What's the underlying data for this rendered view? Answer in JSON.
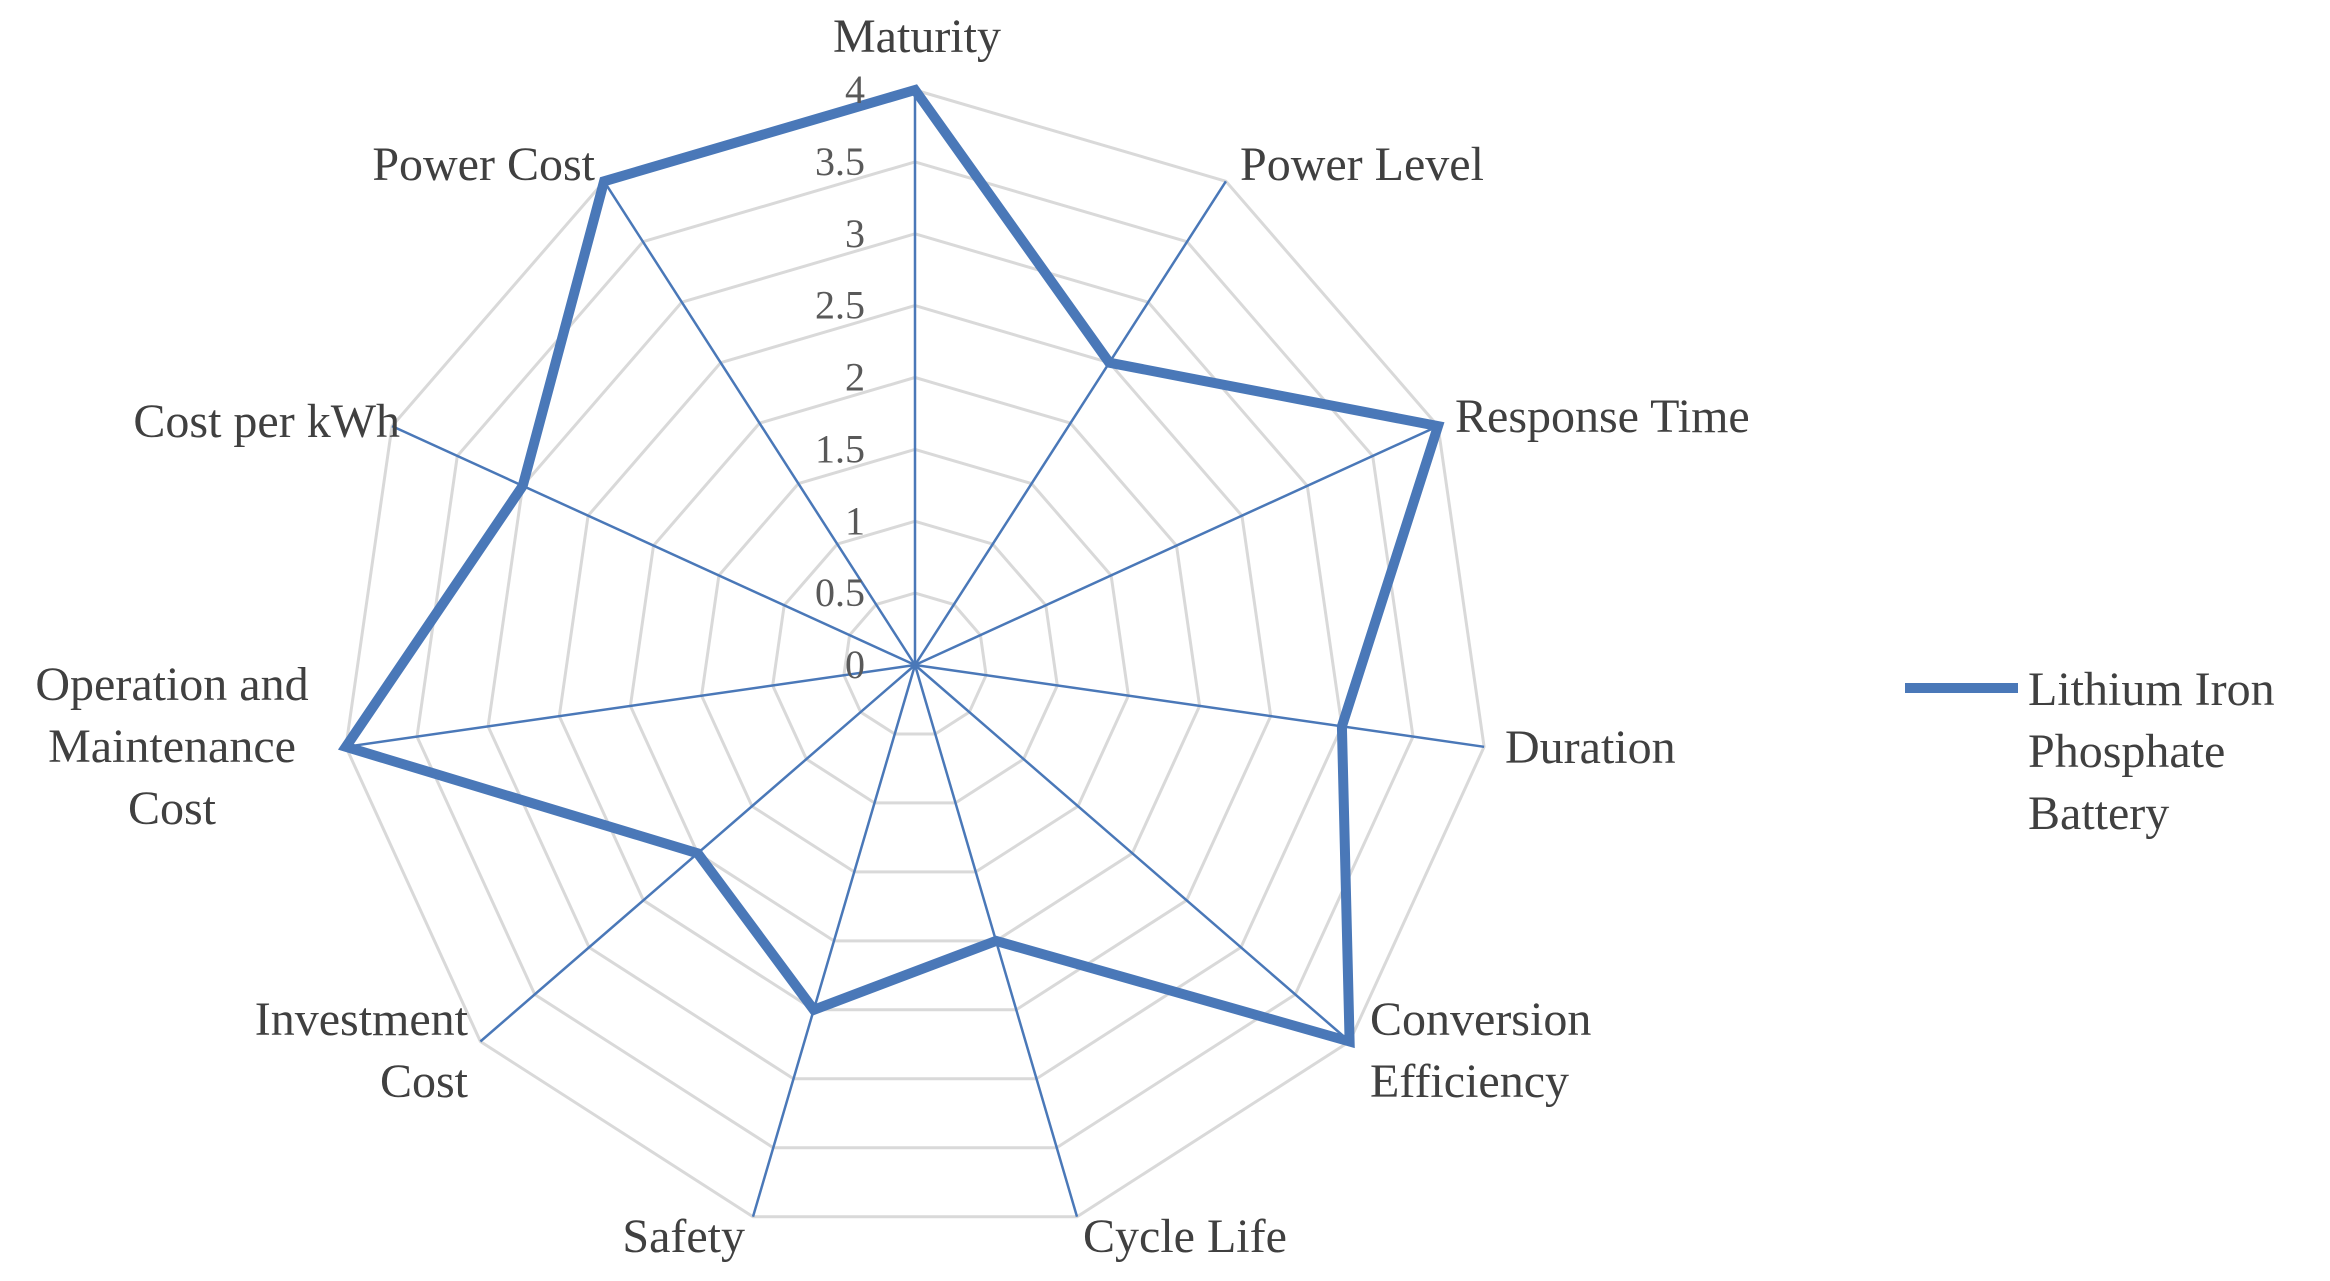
{
  "chart_data": {
    "type": "radar",
    "categories": [
      "Maturity",
      "Power Level",
      "Response Time",
      "Duration",
      "Conversion Efficiency",
      "Cycle Life",
      "Safety",
      "Investment Cost",
      "Operation and Maintenance Cost",
      "Cost per kWh",
      "Power Cost"
    ],
    "category_label_lines": [
      [
        "Maturity"
      ],
      [
        "Power Level"
      ],
      [
        "Response Time"
      ],
      [
        "Duration"
      ],
      [
        "Conversion",
        "Efficiency"
      ],
      [
        "Cycle Life"
      ],
      [
        "Safety"
      ],
      [
        "Investment",
        "Cost"
      ],
      [
        "Operation and",
        "Maintenance",
        "Cost"
      ],
      [
        "Cost per kWh"
      ],
      [
        "Power Cost"
      ]
    ],
    "ticks": [
      "0",
      "0.5",
      "1",
      "1.5",
      "2",
      "2.5",
      "3",
      "3.5",
      "4"
    ],
    "rlim": [
      0,
      4
    ],
    "series": [
      {
        "name": "Lithium Iron Phosphate Battery",
        "values": [
          4,
          2.5,
          4,
          3,
          4,
          2,
          2.5,
          2,
          4,
          3,
          4
        ]
      }
    ],
    "legend": {
      "position": "right",
      "label_lines": [
        "Lithium Iron",
        "Phosphate",
        "Battery"
      ]
    },
    "grid": true,
    "colors": {
      "series": "#4a78b8",
      "spokes": "#4a78b8",
      "grid": "#d9d9d9",
      "text": "#404040"
    }
  }
}
